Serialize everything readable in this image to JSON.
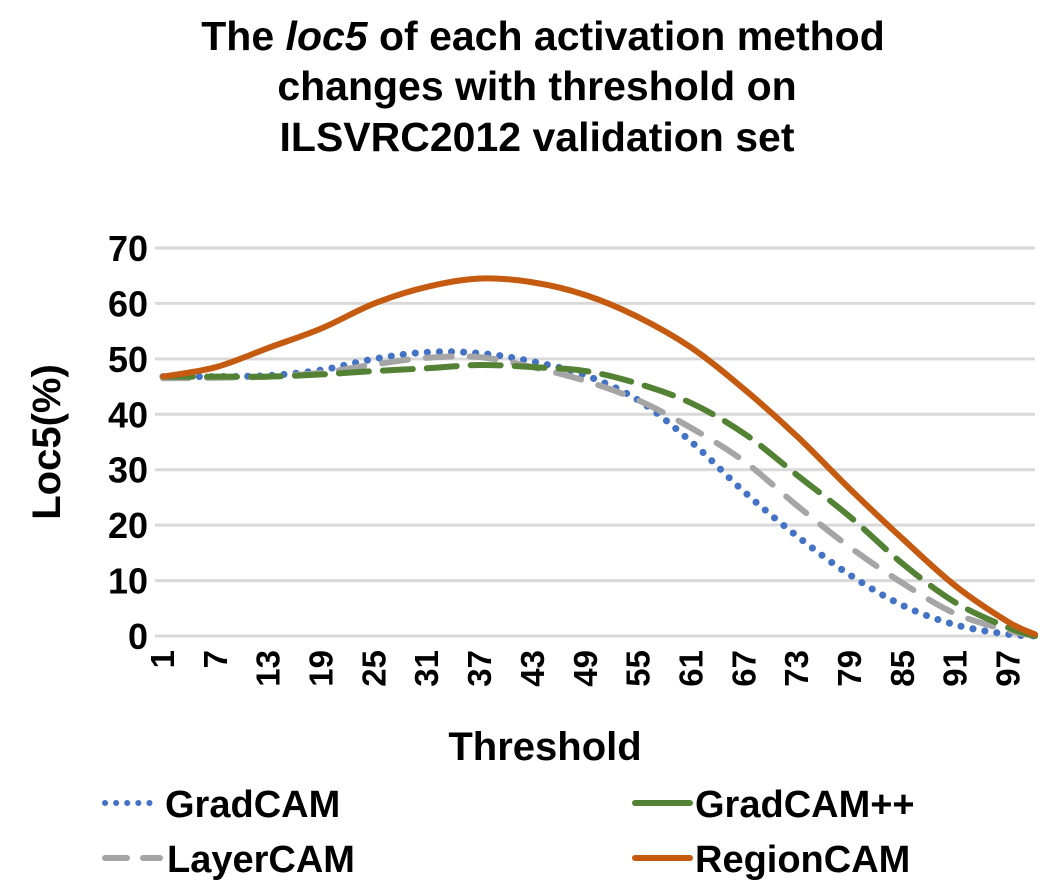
{
  "chart_data": {
    "type": "line",
    "title": {
      "line1_pre": "The ",
      "line1_italic": "loc5",
      "line1_post": " of each activation method",
      "line2": "changes with threshold on",
      "line3": "ILSVRC2012 validation set"
    },
    "xlabel": "Threshold",
    "ylabel": "Loc5(%)",
    "xlim": [
      1,
      100
    ],
    "ylim": [
      0,
      70
    ],
    "yticks": [
      0,
      10,
      20,
      30,
      40,
      50,
      60,
      70
    ],
    "xticks": [
      1,
      7,
      13,
      19,
      25,
      31,
      37,
      43,
      49,
      55,
      61,
      67,
      73,
      79,
      85,
      91,
      97
    ],
    "grid": "horizontal",
    "legend_placement": "bottom",
    "x": [
      1,
      7,
      13,
      19,
      25,
      31,
      37,
      43,
      49,
      55,
      61,
      67,
      73,
      79,
      85,
      91,
      97,
      100
    ],
    "series": [
      {
        "name": "GradCAM",
        "color": "#4472C4",
        "style": "dotted",
        "values": [
          46.8,
          46.8,
          47.0,
          48.0,
          50.0,
          51.2,
          51.0,
          49.5,
          47.0,
          42.5,
          35.0,
          26.0,
          18.0,
          11.0,
          5.5,
          2.0,
          0.3,
          0
        ]
      },
      {
        "name": "GradCAM++",
        "color": "#548235",
        "style": "long-dash",
        "values": [
          46.8,
          46.8,
          46.8,
          47.2,
          47.8,
          48.3,
          48.9,
          48.5,
          47.8,
          45.5,
          42.0,
          36.5,
          29.0,
          21.5,
          13.0,
          6.0,
          1.5,
          0
        ]
      },
      {
        "name": "LayerCAM",
        "color": "#A5A5A5",
        "style": "dash",
        "values": [
          46.5,
          46.6,
          46.8,
          47.5,
          49.0,
          50.2,
          50.3,
          48.5,
          46.0,
          42.5,
          37.5,
          31.5,
          23.5,
          16.0,
          9.5,
          4.0,
          1.0,
          0
        ]
      },
      {
        "name": "RegionCAM",
        "color": "#C55A11",
        "style": "solid",
        "values": [
          46.8,
          48.5,
          52.0,
          55.5,
          60.0,
          63.0,
          64.5,
          63.8,
          61.5,
          57.5,
          52.0,
          44.5,
          36.0,
          26.5,
          17.5,
          9.0,
          2.5,
          0.3
        ]
      }
    ]
  }
}
